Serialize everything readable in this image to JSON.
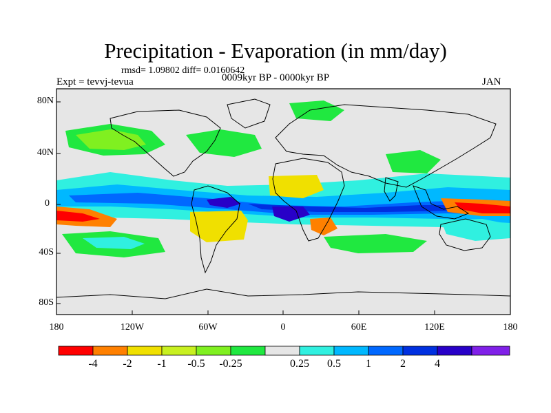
{
  "header": {
    "title": "Precipitation - Evaporation (in mm/day)",
    "stats": "rmsd= 1.09802 diff= 0.0160642",
    "experiment": "Expt = tevvj-tevua",
    "period": "0009kyr BP - 0000kyr BP",
    "month": "JAN"
  },
  "axes": {
    "lat_labels": [
      "80N",
      "40N",
      "0",
      "40S",
      "80S"
    ],
    "lon_labels": [
      "180",
      "120W",
      "60W",
      "0",
      "60E",
      "120E",
      "180"
    ]
  },
  "colorbar": {
    "colors": [
      "#ff0000",
      "#ff8000",
      "#f0e000",
      "#c8f020",
      "#80f020",
      "#20e840",
      "#e6e6e6",
      "#30f0e0",
      "#00b8ff",
      "#0068ff",
      "#0030e0",
      "#2800c8",
      "#8020e8"
    ],
    "labels": [
      "-4",
      "-2",
      "-1",
      "-0.5",
      "-0.25",
      "0.25",
      "0.5",
      "1",
      "2",
      "4"
    ]
  },
  "map": {
    "background": "#e6e6e6",
    "coast_color": "#000000"
  }
}
